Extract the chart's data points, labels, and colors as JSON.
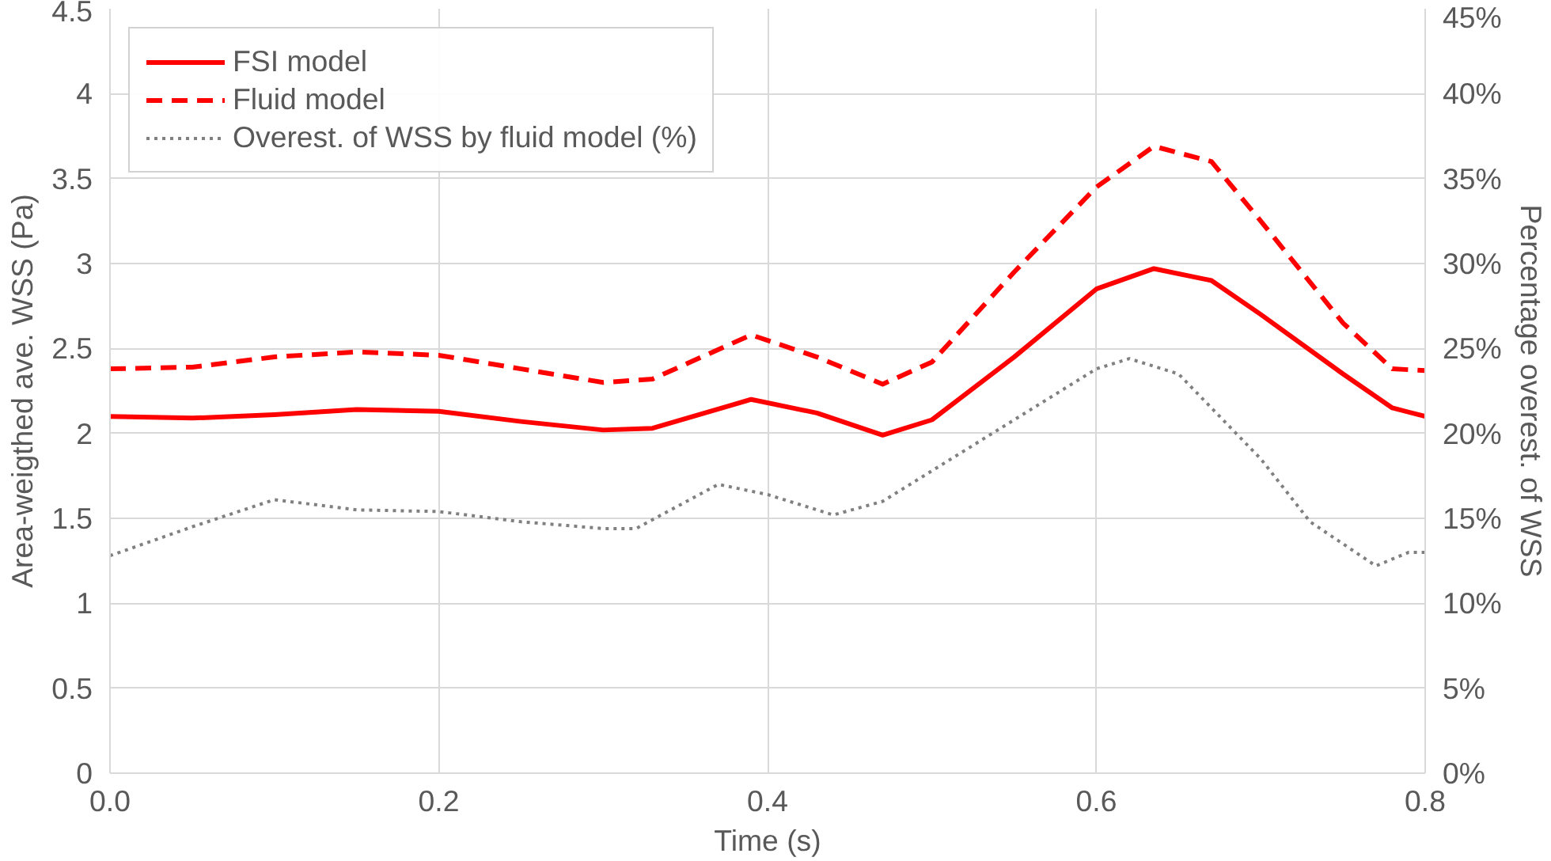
{
  "chart_data": {
    "type": "line",
    "xlabel": "Time (s)",
    "ylabel": "Area-weigthed ave. WSS (Pa)",
    "y2label": "Percentage overest. of WSS",
    "xlim": [
      0,
      0.8
    ],
    "xticks": [
      {
        "value": 0,
        "label": "0.0"
      },
      0.2,
      0.4,
      0.6,
      0.8
    ],
    "ylim": [
      0,
      4.5
    ],
    "yticks": [
      0,
      0.5,
      1,
      1.5,
      2,
      2.5,
      3,
      3.5,
      4,
      4.5
    ],
    "y2lim": [
      0,
      45
    ],
    "y2ticks": [
      {
        "value": 0,
        "label": "0%"
      },
      {
        "value": 5,
        "label": "5%"
      },
      {
        "value": 10,
        "label": "10%"
      },
      {
        "value": 15,
        "label": "15%"
      },
      {
        "value": 20,
        "label": "20%"
      },
      {
        "value": 25,
        "label": "25%"
      },
      {
        "value": 30,
        "label": "30%"
      },
      {
        "value": 35,
        "label": "35%"
      },
      {
        "value": 40,
        "label": "40%"
      },
      {
        "value": 45,
        "label": "45%"
      }
    ],
    "grid": true,
    "legend": "top left",
    "series": [
      {
        "name": "FSI model",
        "color": "#ff0000",
        "line_style": "solid",
        "x": [
          0,
          0.05,
          0.1,
          0.15,
          0.2,
          0.25,
          0.3,
          0.33,
          0.39,
          0.43,
          0.47,
          0.5,
          0.55,
          0.6,
          0.635,
          0.67,
          0.7,
          0.75,
          0.78,
          0.8
        ],
        "values": [
          2.1,
          2.09,
          2.11,
          2.14,
          2.13,
          2.07,
          2.02,
          2.03,
          2.2,
          2.12,
          1.99,
          2.08,
          2.45,
          2.85,
          2.97,
          2.9,
          2.7,
          2.35,
          2.15,
          2.1
        ]
      },
      {
        "name": "Fluid model",
        "color": "#ff0000",
        "line_style": "dashed",
        "x": [
          0,
          0.05,
          0.1,
          0.15,
          0.2,
          0.25,
          0.3,
          0.33,
          0.39,
          0.43,
          0.47,
          0.5,
          0.55,
          0.6,
          0.635,
          0.67,
          0.7,
          0.75,
          0.78,
          0.8
        ],
        "values": [
          2.38,
          2.39,
          2.45,
          2.48,
          2.46,
          2.38,
          2.3,
          2.32,
          2.58,
          2.45,
          2.29,
          2.42,
          2.95,
          3.45,
          3.69,
          3.6,
          3.25,
          2.65,
          2.38,
          2.37
        ]
      },
      {
        "name": "Overest. of WSS by fluid model (%)",
        "color": "#808080",
        "line_style": "dotted",
        "axis": "y2",
        "x": [
          0,
          0.05,
          0.1,
          0.15,
          0.2,
          0.25,
          0.3,
          0.32,
          0.37,
          0.4,
          0.44,
          0.47,
          0.5,
          0.55,
          0.6,
          0.62,
          0.65,
          0.7,
          0.73,
          0.77,
          0.79,
          0.8
        ],
        "values": [
          12.8,
          14.5,
          16.1,
          15.5,
          15.4,
          14.8,
          14.4,
          14.4,
          17.0,
          16.4,
          15.2,
          16.0,
          17.8,
          20.8,
          23.8,
          24.4,
          23.5,
          18.5,
          14.8,
          12.2,
          13.0,
          13.0
        ]
      }
    ]
  }
}
